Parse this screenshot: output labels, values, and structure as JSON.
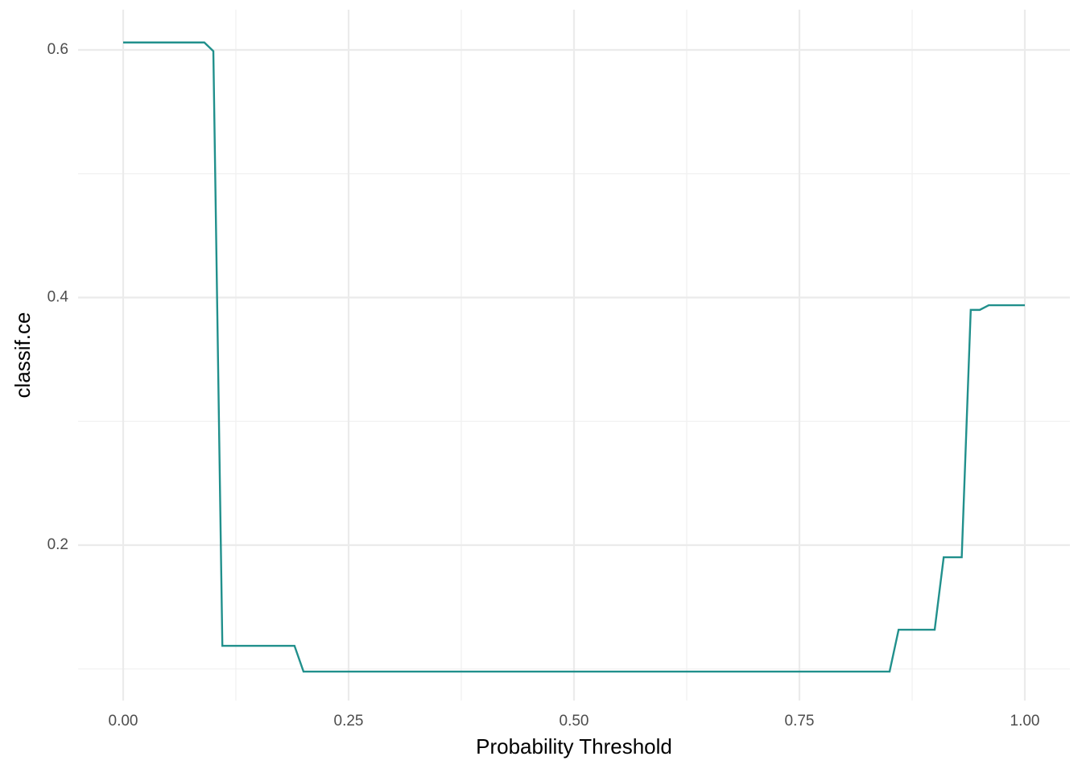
{
  "chart_data": {
    "type": "line",
    "x_label": "Probability Threshold",
    "y_label": "classif.ce",
    "x": [
      0,
      0.09,
      0.1,
      0.11,
      0.19,
      0.2,
      0.85,
      0.86,
      0.9,
      0.91,
      0.93,
      0.94,
      0.95,
      0.96,
      1.0
    ],
    "series": [
      {
        "color": "#21908c",
        "values": [
          0.606,
          0.606,
          0.599,
          0.1187,
          0.1187,
          0.0979,
          0.0979,
          0.1317,
          0.1317,
          0.1902,
          0.1902,
          0.39,
          0.39,
          0.3938,
          0.3938
        ]
      }
    ],
    "xlim": [
      -0.05,
      1.05
    ],
    "ylim": [
      0.0745,
      0.6325
    ],
    "xticks": [
      {
        "value": 0,
        "label": "0.00"
      },
      {
        "value": 0.25,
        "label": "0.25"
      },
      {
        "value": 0.5,
        "label": "0.50"
      },
      {
        "value": 0.75,
        "label": "0.75"
      },
      {
        "value": 1,
        "label": "1.00"
      }
    ],
    "yticks": [
      0.2,
      0.4,
      0.6
    ],
    "x_minor_ticks": [
      0.125,
      0.375,
      0.625,
      0.875
    ],
    "y_minor_ticks": [
      0.1,
      0.3,
      0.5
    ],
    "grid": true
  }
}
